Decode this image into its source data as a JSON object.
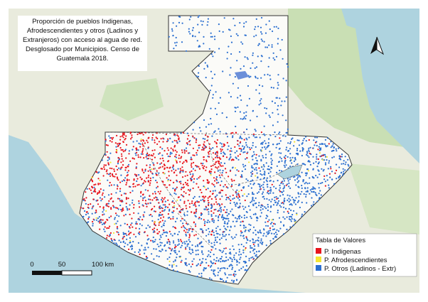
{
  "title_lines": [
    "Proporción de pueblos Indigenas,",
    "Afrodescendientes y otros (Ladinos y",
    "Extranjeros) con acceso al agua de red.",
    "Desglosado por Municipios. Censo de",
    "Guatemala 2018."
  ],
  "legend": {
    "title": "Tabla de Valores",
    "items": [
      {
        "label": "P. Indigenas",
        "color": "#e8141c"
      },
      {
        "label": "P. Afrodescendientes",
        "color": "#f5e633"
      },
      {
        "label": "P. Otros (Ladinos - Extr)",
        "color": "#2b6fd0"
      }
    ]
  },
  "scale_bar": {
    "labels": [
      "0",
      "50",
      "100 km"
    ]
  }
}
